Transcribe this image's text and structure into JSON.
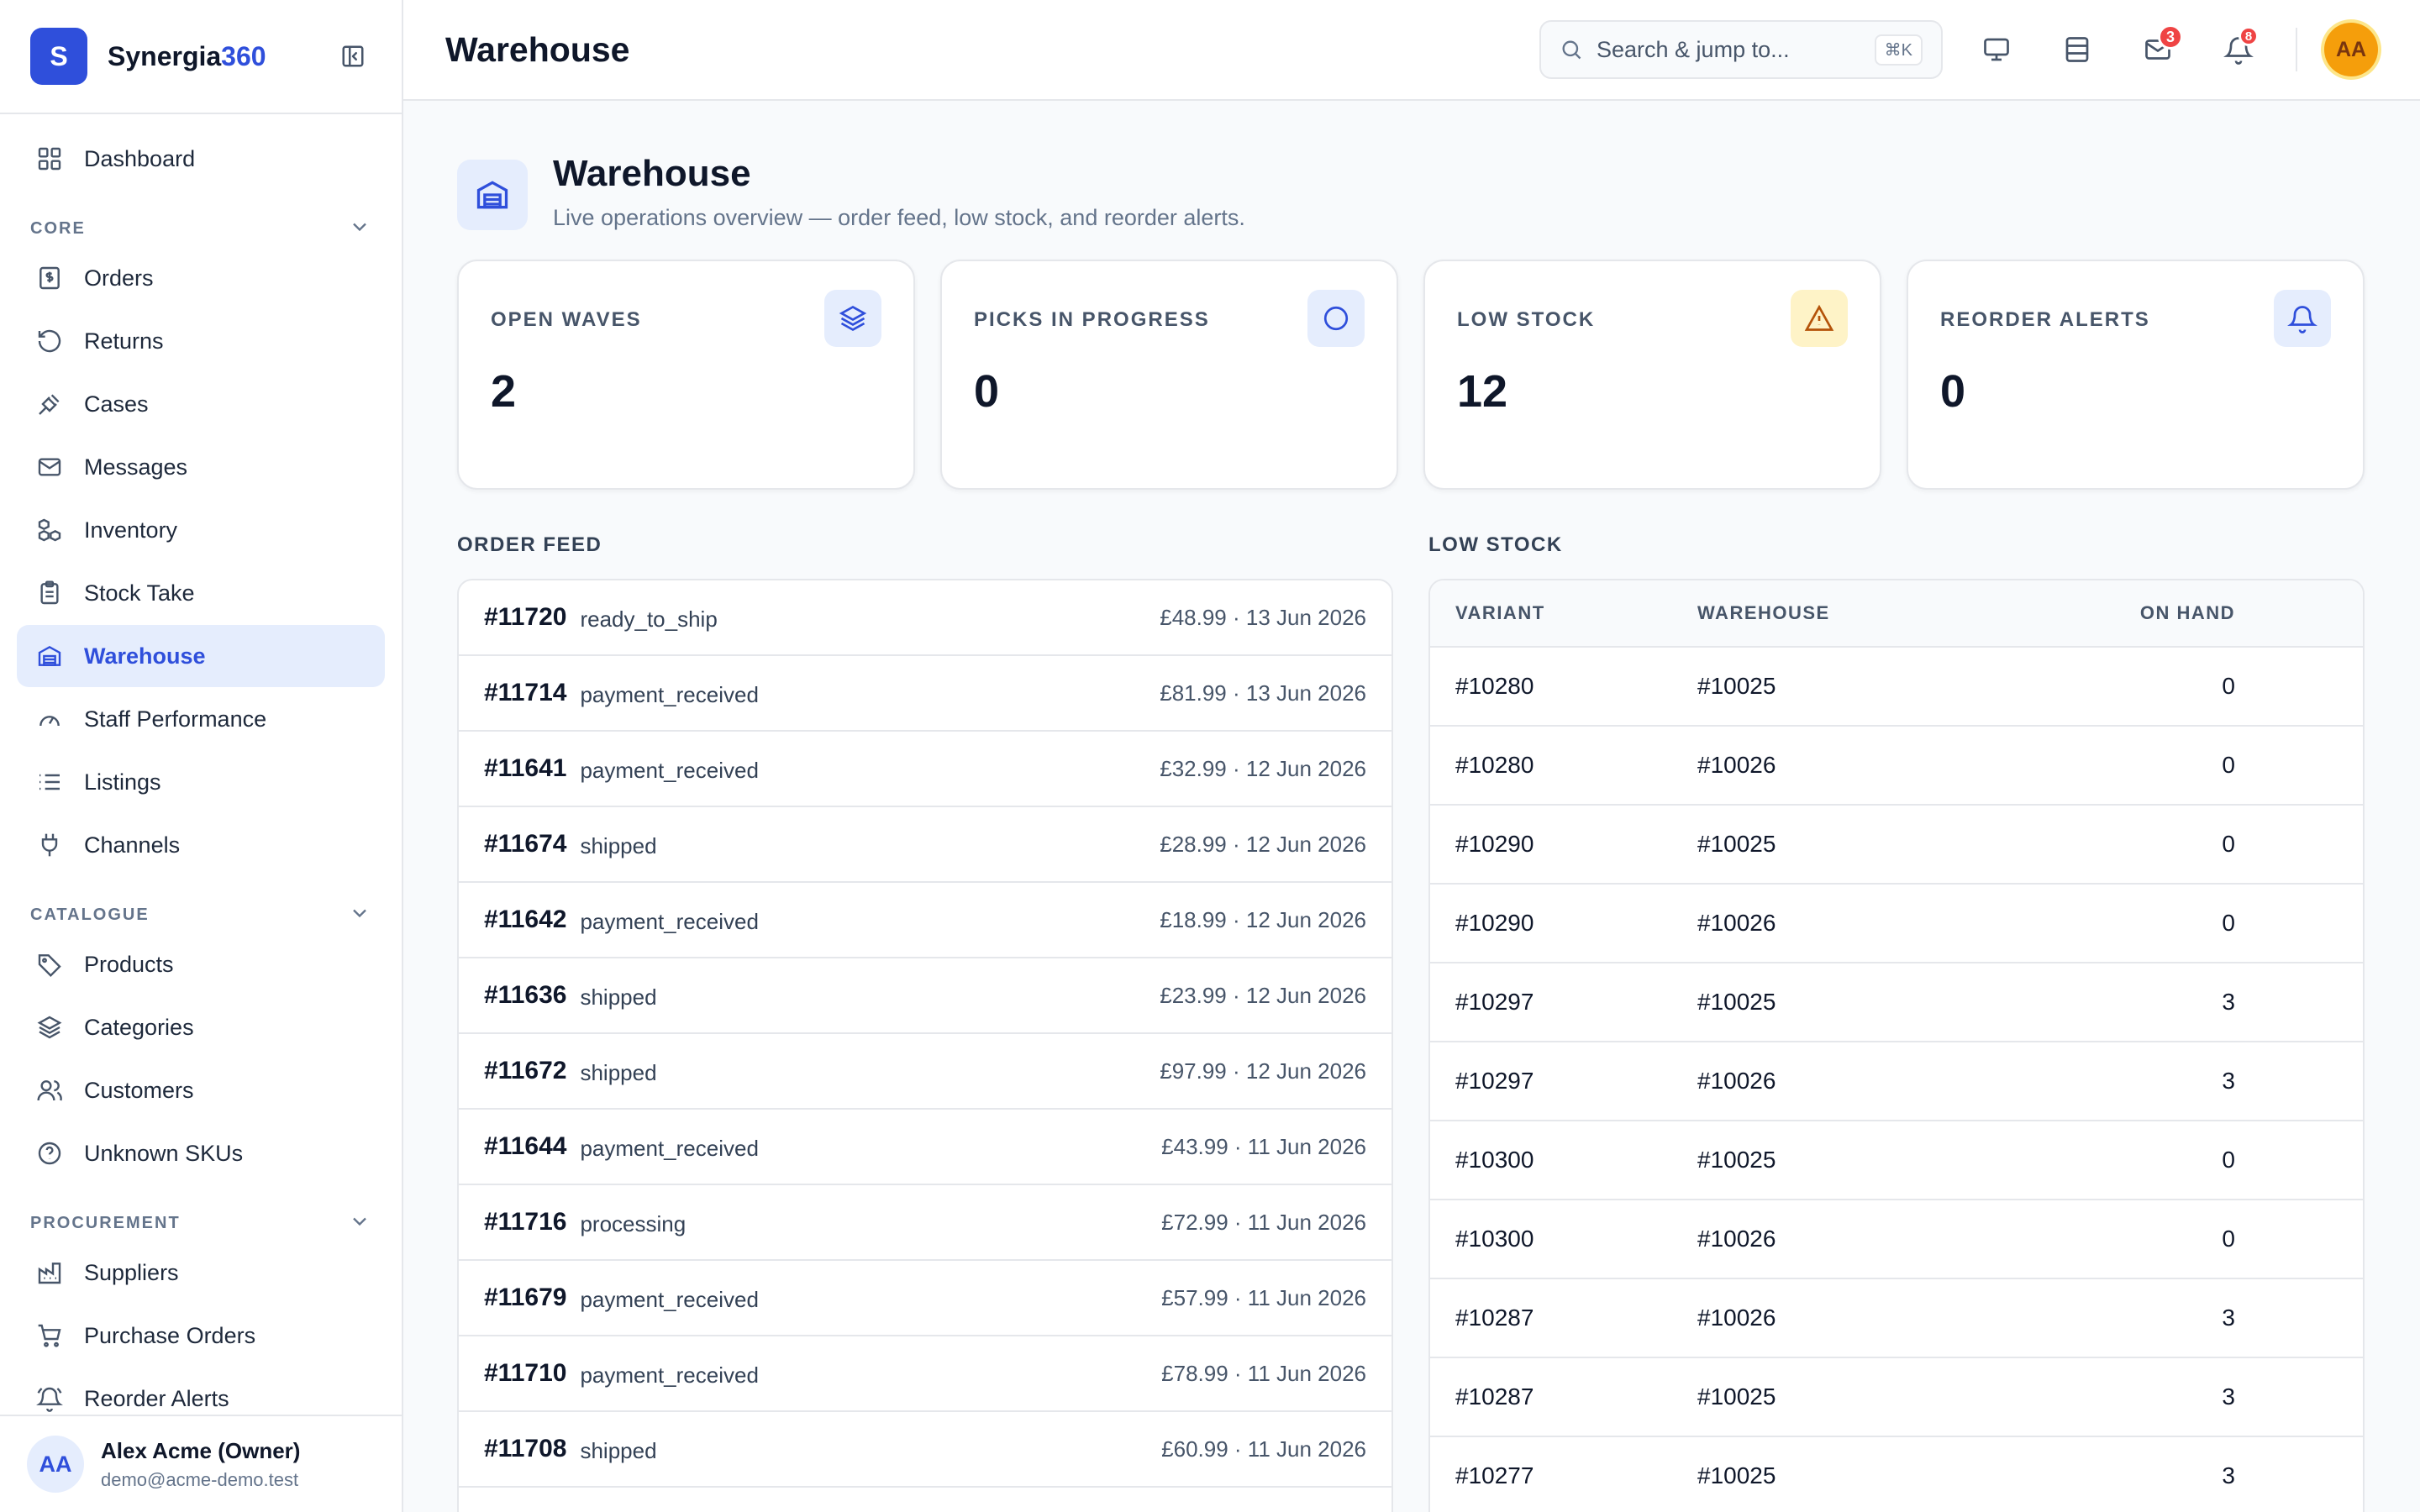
{
  "brand": {
    "name_main": "Synergia",
    "name_accent": "360",
    "logo_letter": "S"
  },
  "sidebar": {
    "top_items": [
      {
        "label": "Dashboard",
        "icon": "grid-icon"
      }
    ],
    "sections": [
      {
        "title": "CORE",
        "items": [
          {
            "label": "Orders",
            "icon": "receipt-icon"
          },
          {
            "label": "Returns",
            "icon": "rotate-ccw-icon"
          },
          {
            "label": "Cases",
            "icon": "gavel-icon"
          },
          {
            "label": "Messages",
            "icon": "mail-icon"
          },
          {
            "label": "Inventory",
            "icon": "boxes-icon"
          },
          {
            "label": "Stock Take",
            "icon": "clipboard-icon"
          },
          {
            "label": "Warehouse",
            "icon": "warehouse-icon",
            "active": true
          },
          {
            "label": "Staff Performance",
            "icon": "gauge-icon"
          },
          {
            "label": "Listings",
            "icon": "list-icon"
          },
          {
            "label": "Channels",
            "icon": "plug-icon"
          }
        ]
      },
      {
        "title": "CATALOGUE",
        "items": [
          {
            "label": "Products",
            "icon": "tag-icon"
          },
          {
            "label": "Categories",
            "icon": "layers-icon"
          },
          {
            "label": "Customers",
            "icon": "users-icon"
          },
          {
            "label": "Unknown SKUs",
            "icon": "help-circle-icon"
          }
        ]
      },
      {
        "title": "PROCUREMENT",
        "items": [
          {
            "label": "Suppliers",
            "icon": "factory-icon"
          },
          {
            "label": "Purchase Orders",
            "icon": "cart-icon"
          },
          {
            "label": "Reorder Alerts",
            "icon": "bell-ring-icon"
          }
        ]
      }
    ],
    "user": {
      "initials": "AA",
      "name": "Alex Acme (Owner)",
      "email": "demo@acme-demo.test"
    }
  },
  "topbar": {
    "title": "Warehouse",
    "search_placeholder": "Search & jump to...",
    "search_shortcut": "⌘K",
    "mail_badge": "3",
    "bell_badge": "8",
    "avatar_initials": "AA"
  },
  "page": {
    "title": "Warehouse",
    "subtitle": "Live operations overview — order feed, low stock, and reorder alerts."
  },
  "stats": [
    {
      "label": "OPEN WAVES",
      "value": "2",
      "icon": "layers-icon",
      "tone": "blue"
    },
    {
      "label": "PICKS IN PROGRESS",
      "value": "0",
      "icon": "circle-icon",
      "tone": "blue"
    },
    {
      "label": "LOW STOCK",
      "value": "12",
      "icon": "alert-triangle-icon",
      "tone": "amber"
    },
    {
      "label": "REORDER ALERTS",
      "value": "0",
      "icon": "bell-icon",
      "tone": "blue"
    }
  ],
  "order_feed": {
    "title": "ORDER FEED",
    "rows": [
      {
        "id": "#11720",
        "status": "ready_to_ship",
        "meta": "£48.99 · 13 Jun 2026"
      },
      {
        "id": "#11714",
        "status": "payment_received",
        "meta": "£81.99 · 13 Jun 2026"
      },
      {
        "id": "#11641",
        "status": "payment_received",
        "meta": "£32.99 · 12 Jun 2026"
      },
      {
        "id": "#11674",
        "status": "shipped",
        "meta": "£28.99 · 12 Jun 2026"
      },
      {
        "id": "#11642",
        "status": "payment_received",
        "meta": "£18.99 · 12 Jun 2026"
      },
      {
        "id": "#11636",
        "status": "shipped",
        "meta": "£23.99 · 12 Jun 2026"
      },
      {
        "id": "#11672",
        "status": "shipped",
        "meta": "£97.99 · 12 Jun 2026"
      },
      {
        "id": "#11644",
        "status": "payment_received",
        "meta": "£43.99 · 11 Jun 2026"
      },
      {
        "id": "#11716",
        "status": "processing",
        "meta": "£72.99 · 11 Jun 2026"
      },
      {
        "id": "#11679",
        "status": "payment_received",
        "meta": "£57.99 · 11 Jun 2026"
      },
      {
        "id": "#11710",
        "status": "payment_received",
        "meta": "£78.99 · 11 Jun 2026"
      },
      {
        "id": "#11708",
        "status": "shipped",
        "meta": "£60.99 · 11 Jun 2026"
      }
    ]
  },
  "low_stock": {
    "title": "LOW STOCK",
    "columns": [
      "VARIANT",
      "WAREHOUSE",
      "ON HAND"
    ],
    "rows": [
      [
        "#10280",
        "#10025",
        "0"
      ],
      [
        "#10280",
        "#10026",
        "0"
      ],
      [
        "#10290",
        "#10025",
        "0"
      ],
      [
        "#10290",
        "#10026",
        "0"
      ],
      [
        "#10297",
        "#10025",
        "3"
      ],
      [
        "#10297",
        "#10026",
        "3"
      ],
      [
        "#10300",
        "#10025",
        "0"
      ],
      [
        "#10300",
        "#10026",
        "0"
      ],
      [
        "#10287",
        "#10026",
        "3"
      ],
      [
        "#10287",
        "#10025",
        "3"
      ],
      [
        "#10277",
        "#10025",
        "3"
      ]
    ]
  }
}
